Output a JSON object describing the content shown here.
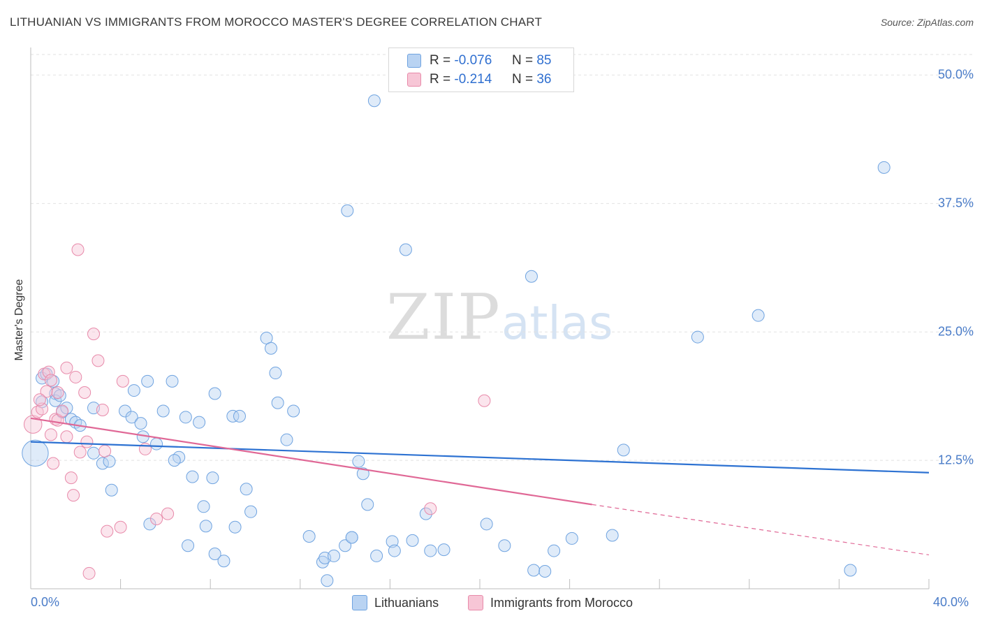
{
  "chart_data": {
    "type": "scatter",
    "title": "LITHUANIAN VS IMMIGRANTS FROM MOROCCO MASTER'S DEGREE CORRELATION CHART",
    "source": "Source: ZipAtlas.com",
    "xlabel": "",
    "ylabel": "Master's Degree",
    "xlim": [
      0,
      40
    ],
    "ylim": [
      0,
      52
    ],
    "x_tick_labels": [
      "0.0%",
      "40.0%"
    ],
    "y_ticks": [
      12.5,
      25.0,
      37.5,
      50.0
    ],
    "y_tick_labels": [
      "12.5%",
      "25.0%",
      "37.5%",
      "50.0%"
    ],
    "grid": true,
    "watermark": {
      "zip": "ZIP",
      "atlas": "atlas"
    },
    "legend": {
      "placement": "top-center",
      "r_label": "R =",
      "n_label": "N =",
      "entries": [
        {
          "name": "Lithuanians",
          "r": "-0.076",
          "n": "85",
          "color": "#6fa3e0",
          "fill": "#b9d3f2"
        },
        {
          "name": "Immigrants from Morocco",
          "r": "-0.214",
          "n": "36",
          "color": "#e88aaa",
          "fill": "#f7c6d6"
        }
      ]
    },
    "series": [
      {
        "name": "Lithuanians",
        "color": "#6fa3e0",
        "trend": {
          "x": [
            0,
            40
          ],
          "y": [
            14.3,
            11.3
          ],
          "color": "#2d72d2"
        },
        "points": [
          [
            0.2,
            13.2,
            2.2
          ],
          [
            0.5,
            18.2,
            1
          ],
          [
            0.5,
            20.5,
            1
          ],
          [
            0.7,
            20.9,
            1
          ],
          [
            1.0,
            20.2,
            1
          ],
          [
            1.1,
            19.0,
            1
          ],
          [
            1.1,
            18.3,
            1
          ],
          [
            1.3,
            18.8,
            1
          ],
          [
            1.4,
            17.2,
            1
          ],
          [
            1.6,
            17.6,
            1
          ],
          [
            1.8,
            16.5,
            1
          ],
          [
            2.0,
            16.2,
            1
          ],
          [
            2.2,
            15.9,
            1
          ],
          [
            2.8,
            17.6,
            1
          ],
          [
            2.8,
            13.2,
            1
          ],
          [
            3.2,
            12.2,
            1
          ],
          [
            3.5,
            12.4,
            1
          ],
          [
            3.6,
            9.6,
            1
          ],
          [
            4.2,
            17.3,
            1
          ],
          [
            4.5,
            16.7,
            1
          ],
          [
            4.6,
            19.3,
            1
          ],
          [
            4.9,
            16.1,
            1
          ],
          [
            5.0,
            14.8,
            1
          ],
          [
            5.6,
            14.1,
            1
          ],
          [
            5.9,
            17.3,
            1
          ],
          [
            6.3,
            20.2,
            1
          ],
          [
            6.6,
            12.8,
            1
          ],
          [
            6.9,
            16.7,
            1
          ],
          [
            6.4,
            12.5,
            1
          ],
          [
            7.2,
            10.9,
            1
          ],
          [
            7.5,
            16.2,
            1
          ],
          [
            7.7,
            8.0,
            1
          ],
          [
            8.1,
            10.8,
            1
          ],
          [
            8.2,
            19.0,
            1
          ],
          [
            9.0,
            16.8,
            1
          ],
          [
            9.3,
            16.8,
            1
          ],
          [
            9.6,
            9.7,
            1
          ],
          [
            9.8,
            7.5,
            1
          ],
          [
            10.5,
            24.4,
            1
          ],
          [
            10.7,
            23.4,
            1
          ],
          [
            10.9,
            21.0,
            1
          ],
          [
            11.0,
            18.1,
            1
          ],
          [
            11.4,
            14.5,
            1
          ],
          [
            11.7,
            17.3,
            1
          ],
          [
            12.4,
            5.1,
            1
          ],
          [
            13.0,
            2.6,
            1
          ],
          [
            13.1,
            3.0,
            1
          ],
          [
            13.2,
            0.8,
            1
          ],
          [
            14.0,
            4.2,
            1
          ],
          [
            14.3,
            5.0,
            1
          ],
          [
            14.6,
            12.4,
            1
          ],
          [
            14.8,
            11.2,
            1
          ],
          [
            15.0,
            8.2,
            1
          ],
          [
            14.3,
            5.0,
            1
          ],
          [
            13.5,
            3.2,
            1
          ],
          [
            15.3,
            47.5,
            1
          ],
          [
            14.1,
            36.8,
            1
          ],
          [
            15.4,
            3.2,
            1
          ],
          [
            16.1,
            4.6,
            1
          ],
          [
            16.2,
            3.7,
            1
          ],
          [
            16.7,
            33.0,
            1
          ],
          [
            17.0,
            4.7,
            1
          ],
          [
            17.6,
            7.3,
            1
          ],
          [
            17.8,
            3.7,
            1
          ],
          [
            18.4,
            3.8,
            1
          ],
          [
            20.3,
            6.3,
            1
          ],
          [
            21.1,
            4.2,
            1
          ],
          [
            22.3,
            30.4,
            1
          ],
          [
            22.4,
            1.8,
            1
          ],
          [
            22.9,
            1.7,
            1
          ],
          [
            23.3,
            3.7,
            1
          ],
          [
            24.1,
            4.9,
            1
          ],
          [
            25.9,
            5.2,
            1
          ],
          [
            26.4,
            13.5,
            1
          ],
          [
            29.7,
            24.5,
            1
          ],
          [
            32.4,
            26.6,
            1
          ],
          [
            36.5,
            1.8,
            1
          ],
          [
            38.0,
            41.0,
            1
          ],
          [
            5.3,
            6.3,
            1
          ],
          [
            7.0,
            4.2,
            1
          ],
          [
            7.8,
            6.1,
            1
          ],
          [
            8.2,
            3.4,
            1
          ],
          [
            8.6,
            2.7,
            1
          ],
          [
            9.1,
            6.0,
            1
          ],
          [
            5.2,
            20.2,
            1
          ]
        ]
      },
      {
        "name": "Immigrants from Morocco",
        "color": "#e88aaa",
        "trend": {
          "x": [
            0,
            25
          ],
          "y": [
            16.6,
            8.2
          ],
          "dash_to": [
            40,
            3.3
          ],
          "color": "#e06896"
        },
        "points": [
          [
            0.1,
            16.0,
            1.5
          ],
          [
            0.3,
            17.2,
            1
          ],
          [
            0.5,
            17.5,
            1
          ],
          [
            0.6,
            20.9,
            1
          ],
          [
            0.7,
            19.2,
            1
          ],
          [
            0.8,
            21.1,
            1
          ],
          [
            0.9,
            20.3,
            1
          ],
          [
            0.9,
            15.0,
            1
          ],
          [
            1.0,
            12.2,
            1
          ],
          [
            1.1,
            16.5,
            1
          ],
          [
            1.2,
            16.4,
            1
          ],
          [
            1.2,
            19.1,
            1
          ],
          [
            1.4,
            17.3,
            1
          ],
          [
            1.6,
            14.8,
            1
          ],
          [
            1.8,
            10.8,
            1
          ],
          [
            1.9,
            9.1,
            1
          ],
          [
            2.0,
            20.6,
            1
          ],
          [
            2.1,
            33.0,
            1
          ],
          [
            2.2,
            13.3,
            1
          ],
          [
            2.4,
            19.1,
            1
          ],
          [
            2.5,
            14.3,
            1
          ],
          [
            2.6,
            1.5,
            1
          ],
          [
            2.8,
            24.8,
            1
          ],
          [
            3.0,
            22.2,
            1
          ],
          [
            3.2,
            17.4,
            1
          ],
          [
            3.3,
            13.4,
            1
          ],
          [
            3.4,
            5.6,
            1
          ],
          [
            4.0,
            6.0,
            1
          ],
          [
            4.1,
            20.2,
            1
          ],
          [
            5.1,
            13.6,
            1
          ],
          [
            5.6,
            6.8,
            1
          ],
          [
            6.1,
            7.3,
            1
          ],
          [
            17.8,
            7.8,
            1
          ],
          [
            20.2,
            18.3,
            1
          ],
          [
            0.4,
            18.4,
            1
          ],
          [
            1.6,
            21.5,
            1
          ]
        ]
      }
    ]
  }
}
